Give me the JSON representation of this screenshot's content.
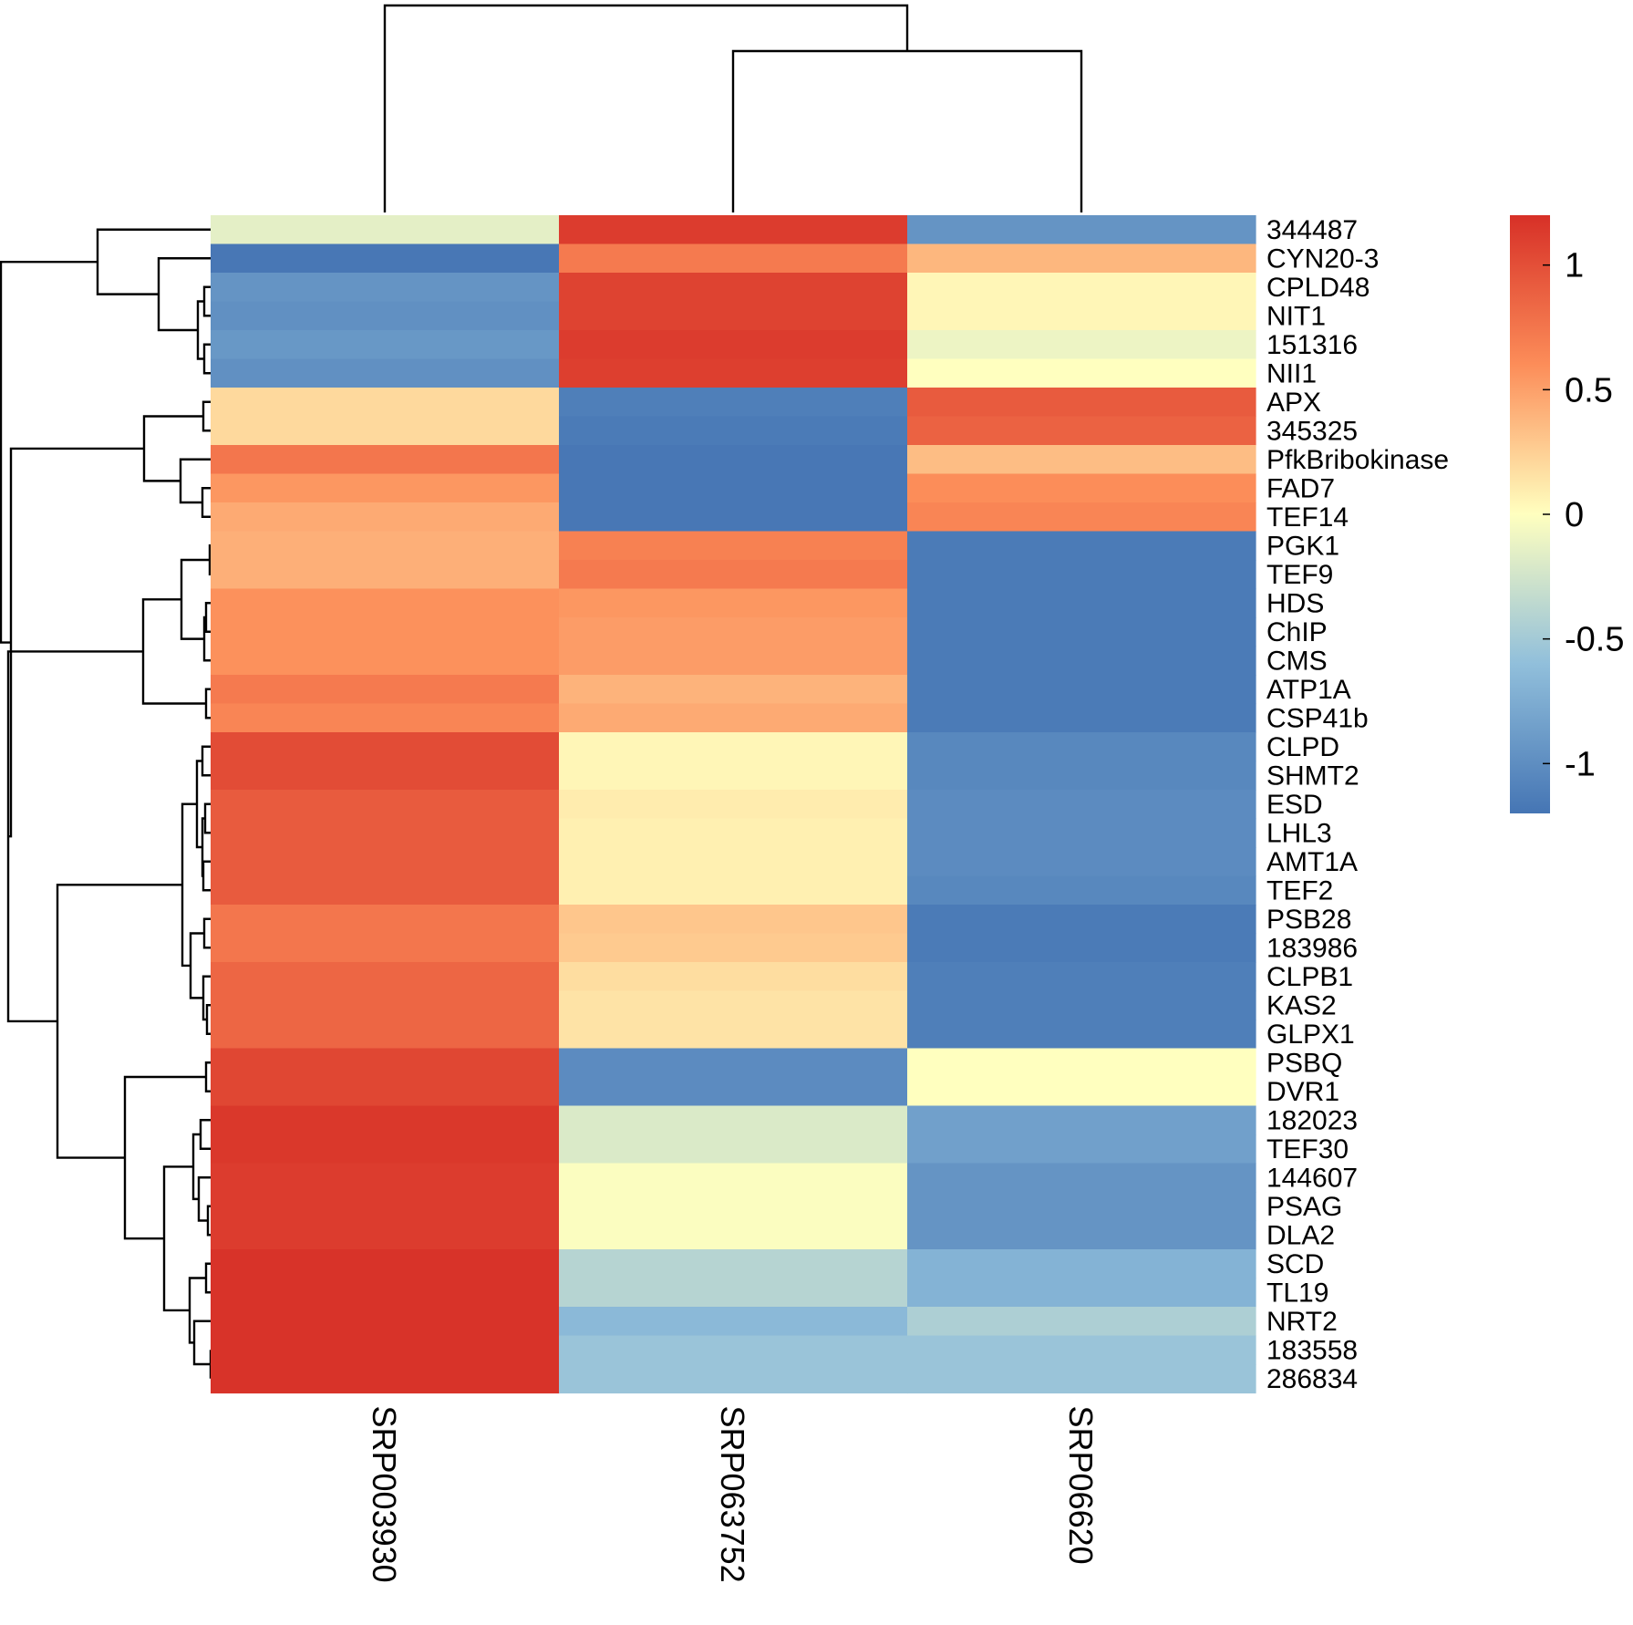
{
  "chart_data": {
    "type": "heatmap",
    "title": "",
    "columns": [
      "SRP003930",
      "SRP063752",
      "SRP06620"
    ],
    "rows": [
      "344487",
      "CYN20-3",
      "CPLD48",
      "NIT1",
      "151316",
      "NII1",
      "APX",
      "345325",
      "PfkBribokinase",
      "FAD7",
      "TEF14",
      "PGK1",
      "TEF9",
      "HDS",
      "ChIP",
      "CMS",
      "ATP1A",
      "CSP41b",
      "CLPD",
      "SHMT2",
      "ESD",
      "LHL3",
      "AMT1A",
      "TEF2",
      "PSB28",
      "183986",
      "CLPB1",
      "KAS2",
      "GLPX1",
      "PSBQ",
      "DVR1",
      "182023",
      "TEF30",
      "144607",
      "PSAG",
      "DLA2",
      "SCD",
      "TL19",
      "NRT2",
      "183558",
      "286834"
    ],
    "values": [
      [
        -0.15,
        1.12,
        -0.95
      ],
      [
        -1.18,
        0.72,
        0.38
      ],
      [
        -0.95,
        1.08,
        0.05
      ],
      [
        -0.98,
        1.08,
        0.05
      ],
      [
        -0.92,
        1.12,
        -0.1
      ],
      [
        -0.98,
        1.1,
        0.0
      ],
      [
        0.2,
        -1.12,
        0.92
      ],
      [
        0.2,
        -1.15,
        0.88
      ],
      [
        0.75,
        -1.18,
        0.35
      ],
      [
        0.55,
        -1.18,
        0.6
      ],
      [
        0.45,
        -1.18,
        0.65
      ],
      [
        0.42,
        0.68,
        -1.15
      ],
      [
        0.42,
        0.72,
        -1.15
      ],
      [
        0.58,
        0.55,
        -1.15
      ],
      [
        0.58,
        0.52,
        -1.15
      ],
      [
        0.58,
        0.52,
        -1.15
      ],
      [
        0.72,
        0.4,
        -1.15
      ],
      [
        0.65,
        0.45,
        -1.15
      ],
      [
        1.02,
        0.05,
        -1.05
      ],
      [
        1.02,
        0.05,
        -1.05
      ],
      [
        0.92,
        0.1,
        -1.02
      ],
      [
        0.92,
        0.08,
        -1.02
      ],
      [
        0.92,
        0.08,
        -1.02
      ],
      [
        0.92,
        0.08,
        -1.05
      ],
      [
        0.75,
        0.3,
        -1.15
      ],
      [
        0.75,
        0.28,
        -1.15
      ],
      [
        0.85,
        0.18,
        -1.12
      ],
      [
        0.85,
        0.15,
        -1.12
      ],
      [
        0.85,
        0.15,
        -1.12
      ],
      [
        1.05,
        -1.02,
        0.0
      ],
      [
        1.05,
        -1.02,
        0.0
      ],
      [
        1.15,
        -0.2,
        -0.85
      ],
      [
        1.15,
        -0.2,
        -0.85
      ],
      [
        1.12,
        -0.02,
        -0.95
      ],
      [
        1.12,
        -0.02,
        -0.95
      ],
      [
        1.12,
        -0.02,
        -0.95
      ],
      [
        1.18,
        -0.4,
        -0.7
      ],
      [
        1.18,
        -0.4,
        -0.7
      ],
      [
        1.18,
        -0.65,
        -0.45
      ],
      [
        1.18,
        -0.55,
        -0.55
      ],
      [
        1.18,
        -0.55,
        -0.55
      ]
    ],
    "color_scale": {
      "min": -1.2,
      "max": 1.2,
      "stops": [
        {
          "value": -1.2,
          "color": "#4575b4"
        },
        {
          "value": -0.6,
          "color": "#91bfdb"
        },
        {
          "value": 0.0,
          "color": "#ffffbf"
        },
        {
          "value": 0.6,
          "color": "#fc8d59"
        },
        {
          "value": 1.2,
          "color": "#d73027"
        }
      ],
      "ticks": [
        {
          "value": 1,
          "label": "1"
        },
        {
          "value": 0.5,
          "label": "0.5"
        },
        {
          "value": 0,
          "label": "0"
        },
        {
          "value": -0.5,
          "label": "-0.5"
        },
        {
          "value": -1,
          "label": "-1"
        }
      ]
    },
    "column_dendrogram": "SRP003930 joins (SRP063752, SRP06620)",
    "row_dendrogram": "hierarchical clustering of 41 genes"
  }
}
